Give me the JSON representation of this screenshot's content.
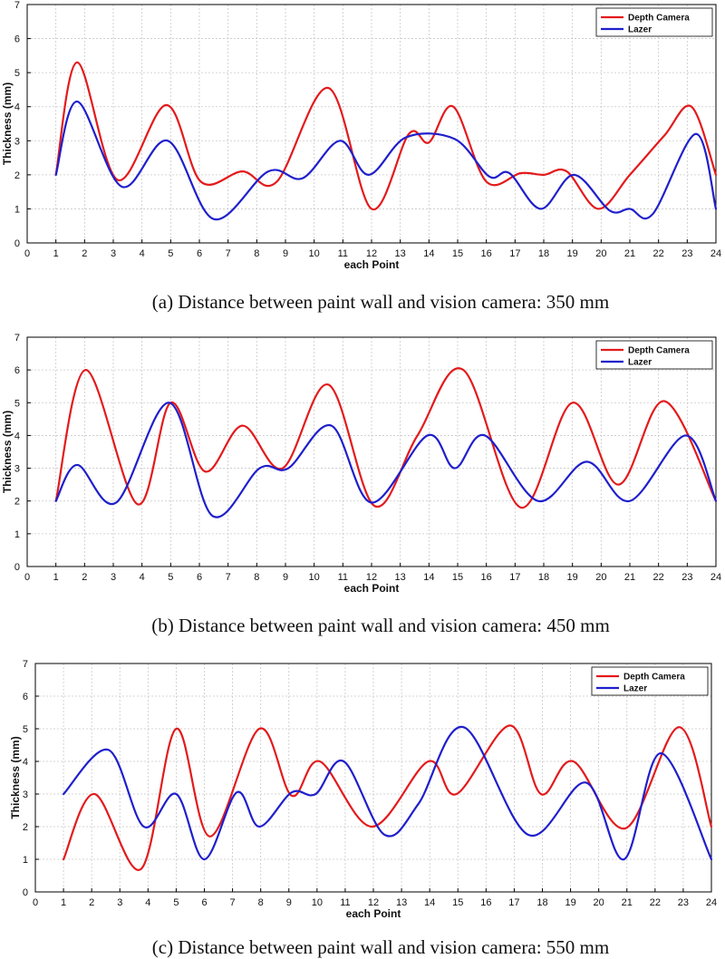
{
  "chart_data": [
    {
      "type": "line",
      "xlabel": "each Point",
      "ylabel": "Thickness (mm)",
      "caption": "(a) Distance between paint wall and vision camera: 350 mm",
      "xlim": [
        0,
        24
      ],
      "ylim": [
        0,
        7
      ],
      "x_ticks": [
        0,
        1,
        2,
        3,
        4,
        5,
        6,
        7,
        8,
        9,
        10,
        11,
        12,
        13,
        14,
        15,
        16,
        17,
        18,
        19,
        20,
        21,
        22,
        23,
        24
      ],
      "y_ticks": [
        0,
        1,
        2,
        3,
        4,
        5,
        6,
        7
      ],
      "grid": true,
      "legend_position": "top-right",
      "series": [
        {
          "name": "Depth Camera",
          "color": "#e31a1c",
          "points": [
            [
              1,
              2.0
            ],
            [
              1.75,
              5.3
            ],
            [
              3.15,
              1.85
            ],
            [
              4.85,
              4.05
            ],
            [
              6.05,
              1.8
            ],
            [
              7.5,
              2.1
            ],
            [
              8.7,
              1.8
            ],
            [
              10.5,
              4.55
            ],
            [
              12,
              1.0
            ],
            [
              13.3,
              3.2
            ],
            [
              14,
              2.95
            ],
            [
              14.85,
              4.0
            ],
            [
              16,
              1.8
            ],
            [
              17.2,
              2.05
            ],
            [
              18,
              2.0
            ],
            [
              18.8,
              2.1
            ],
            [
              19.9,
              1.0
            ],
            [
              21,
              2.0
            ],
            [
              22.2,
              3.15
            ],
            [
              23.15,
              4.0
            ],
            [
              24,
              2.0
            ]
          ]
        },
        {
          "name": "Lazer",
          "color": "#1f1fcc",
          "points": [
            [
              1,
              2.0
            ],
            [
              1.75,
              4.15
            ],
            [
              3.3,
              1.65
            ],
            [
              4.9,
              3.0
            ],
            [
              6.5,
              0.7
            ],
            [
              8.4,
              2.1
            ],
            [
              9.6,
              1.9
            ],
            [
              10.9,
              3.0
            ],
            [
              11.9,
              2.0
            ],
            [
              13.2,
              3.1
            ],
            [
              14.9,
              3.05
            ],
            [
              16.1,
              1.95
            ],
            [
              16.8,
              2.05
            ],
            [
              17.9,
              1.0
            ],
            [
              19.05,
              2.0
            ],
            [
              20.3,
              0.95
            ],
            [
              21,
              1.0
            ],
            [
              21.8,
              0.85
            ],
            [
              23.3,
              3.2
            ],
            [
              24,
              1.0
            ]
          ]
        }
      ]
    },
    {
      "type": "line",
      "xlabel": "each Point",
      "ylabel": "Thickness (mm)",
      "caption": "(b) Distance between paint wall and vision camera: 450 mm",
      "xlim": [
        0,
        24
      ],
      "ylim": [
        0,
        7
      ],
      "x_ticks": [
        0,
        1,
        2,
        3,
        4,
        5,
        6,
        7,
        8,
        9,
        10,
        11,
        12,
        13,
        14,
        15,
        16,
        17,
        18,
        19,
        20,
        21,
        22,
        23,
        24
      ],
      "y_ticks": [
        0,
        1,
        2,
        3,
        4,
        5,
        6,
        7
      ],
      "grid": true,
      "legend_position": "top-right",
      "series": [
        {
          "name": "Depth Camera",
          "color": "#e31a1c",
          "points": [
            [
              1,
              2.0
            ],
            [
              2.05,
              6.0
            ],
            [
              3.85,
              1.9
            ],
            [
              5.0,
              5.0
            ],
            [
              6.2,
              2.9
            ],
            [
              7.5,
              4.3
            ],
            [
              8.9,
              3.0
            ],
            [
              10.5,
              5.55
            ],
            [
              12.1,
              1.85
            ],
            [
              13.6,
              4.0
            ],
            [
              15.2,
              6.0
            ],
            [
              17.2,
              1.8
            ],
            [
              19.0,
              5.0
            ],
            [
              20.6,
              2.5
            ],
            [
              22.2,
              5.05
            ],
            [
              24,
              2.0
            ]
          ]
        },
        {
          "name": "Lazer",
          "color": "#1f1fcc",
          "points": [
            [
              1,
              2.0
            ],
            [
              1.75,
              3.1
            ],
            [
              3.1,
              1.95
            ],
            [
              4.95,
              5.0
            ],
            [
              6.45,
              1.55
            ],
            [
              8.1,
              3.0
            ],
            [
              9.1,
              3.0
            ],
            [
              10.6,
              4.3
            ],
            [
              12.0,
              1.95
            ],
            [
              13.95,
              4.0
            ],
            [
              14.9,
              3.0
            ],
            [
              15.95,
              4.0
            ],
            [
              17.8,
              2.0
            ],
            [
              19.5,
              3.2
            ],
            [
              21.0,
              2.0
            ],
            [
              22.95,
              4.0
            ],
            [
              24,
              2.0
            ]
          ]
        }
      ]
    },
    {
      "type": "line",
      "xlabel": "each Point",
      "ylabel": "Thickness (mm)",
      "caption": "(c) Distance between paint wall and vision camera: 550 mm",
      "xlim": [
        0,
        24
      ],
      "ylim": [
        0,
        7
      ],
      "x_ticks": [
        0,
        1,
        2,
        3,
        4,
        5,
        6,
        7,
        8,
        9,
        10,
        11,
        12,
        13,
        14,
        15,
        16,
        17,
        18,
        19,
        20,
        21,
        22,
        23,
        24
      ],
      "y_ticks": [
        0,
        1,
        2,
        3,
        4,
        5,
        6,
        7
      ],
      "grid": true,
      "legend_position": "top-right",
      "series": [
        {
          "name": "Depth Camera",
          "color": "#e31a1c",
          "points": [
            [
              1,
              1.0
            ],
            [
              2.1,
              3.0
            ],
            [
              3.75,
              0.7
            ],
            [
              5.0,
              5.0
            ],
            [
              6.2,
              1.7
            ],
            [
              7.95,
              5.0
            ],
            [
              9.1,
              2.95
            ],
            [
              10.1,
              4.0
            ],
            [
              11.95,
              2.0
            ],
            [
              13.95,
              4.0
            ],
            [
              14.95,
              3.0
            ],
            [
              16.85,
              5.1
            ],
            [
              17.95,
              3.0
            ],
            [
              19.1,
              4.0
            ],
            [
              20.95,
              1.95
            ],
            [
              22.85,
              5.05
            ],
            [
              24,
              2.0
            ]
          ]
        },
        {
          "name": "Lazer",
          "color": "#1f1fcc",
          "points": [
            [
              1,
              3.0
            ],
            [
              2.6,
              4.35
            ],
            [
              3.85,
              2.0
            ],
            [
              5.0,
              3.0
            ],
            [
              6.0,
              1.0
            ],
            [
              7.15,
              3.05
            ],
            [
              7.95,
              2.0
            ],
            [
              9.1,
              3.05
            ],
            [
              9.95,
              3.0
            ],
            [
              10.95,
              4.0
            ],
            [
              12.4,
              1.75
            ],
            [
              13.6,
              2.7
            ],
            [
              15.2,
              5.05
            ],
            [
              17.5,
              1.75
            ],
            [
              19.55,
              3.35
            ],
            [
              20.9,
              1.0
            ],
            [
              22.2,
              4.25
            ],
            [
              24,
              1.0
            ]
          ]
        }
      ]
    }
  ]
}
